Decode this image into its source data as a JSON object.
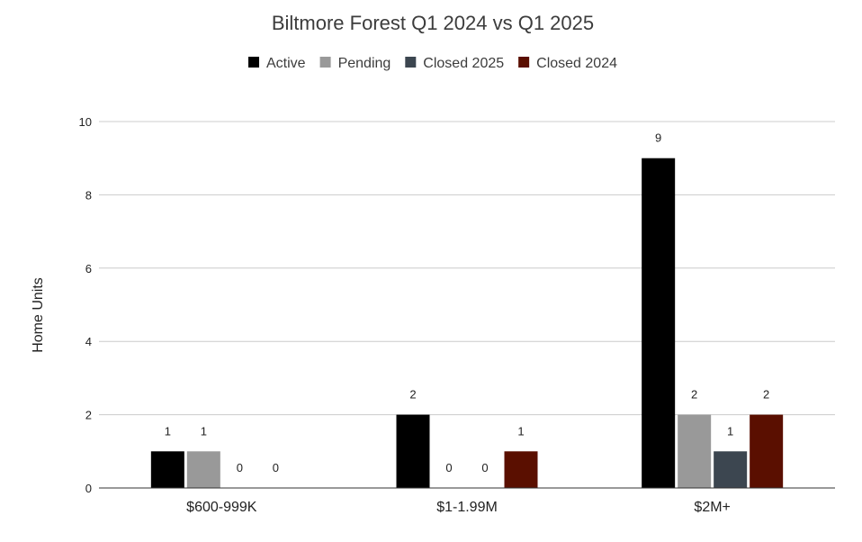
{
  "chart_data": {
    "type": "bar",
    "title": "Biltmore Forest Q1 2024 vs Q1 2025",
    "xlabel": "",
    "ylabel": "Home Units",
    "ylim": [
      0,
      10
    ],
    "yticks": [
      0,
      2,
      4,
      6,
      8,
      10
    ],
    "grid": true,
    "legend_position": "top",
    "categories": [
      "$600-999K",
      "$1-1.99M",
      "$2M+"
    ],
    "series": [
      {
        "name": "Active",
        "color": "#000000",
        "values": [
          1,
          2,
          9
        ]
      },
      {
        "name": "Pending",
        "color": "#999999",
        "values": [
          1,
          0,
          2
        ]
      },
      {
        "name": "Closed 2025",
        "color": "#3c4650",
        "values": [
          0,
          0,
          1
        ]
      },
      {
        "name": "Closed 2024",
        "color": "#5a0f00",
        "values": [
          0,
          1,
          2
        ]
      }
    ]
  }
}
